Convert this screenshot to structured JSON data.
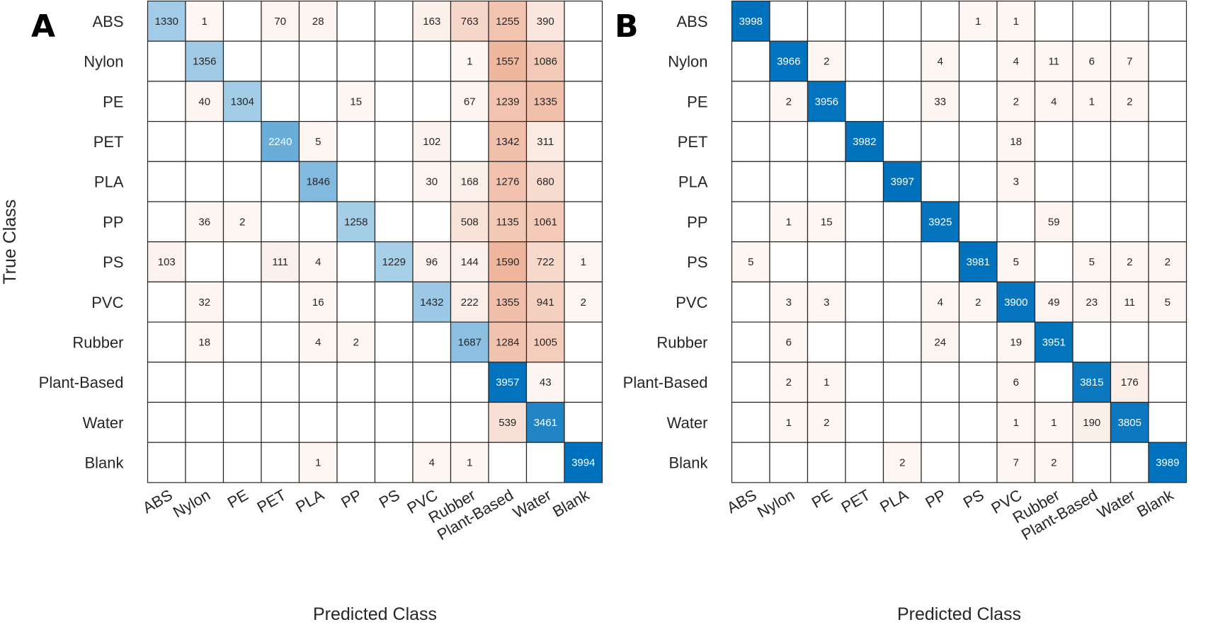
{
  "chart_data": [
    {
      "type": "heatmap",
      "panel_label": "A",
      "xlabel": "Predicted Class",
      "ylabel": "True Class",
      "x_categories": [
        "ABS",
        "Nylon",
        "PE",
        "PET",
        "PLA",
        "PP",
        "PS",
        "PVC",
        "Rubber",
        "Plant-Based",
        "Water",
        "Blank"
      ],
      "y_categories": [
        "ABS",
        "Nylon",
        "PE",
        "PET",
        "PLA",
        "PP",
        "PS",
        "PVC",
        "Rubber",
        "Plant-Based",
        "Water",
        "Blank"
      ],
      "values": [
        [
          1330,
          1,
          null,
          70,
          28,
          null,
          null,
          163,
          763,
          1255,
          390,
          null
        ],
        [
          null,
          1356,
          null,
          null,
          null,
          null,
          null,
          null,
          1,
          1557,
          1086,
          null
        ],
        [
          null,
          40,
          1304,
          null,
          null,
          15,
          null,
          null,
          67,
          1239,
          1335,
          null
        ],
        [
          null,
          null,
          null,
          2240,
          5,
          null,
          null,
          102,
          null,
          1342,
          311,
          null
        ],
        [
          null,
          null,
          null,
          null,
          1846,
          null,
          null,
          30,
          168,
          1276,
          680,
          null
        ],
        [
          null,
          36,
          2,
          null,
          null,
          1258,
          null,
          null,
          508,
          1135,
          1061,
          null
        ],
        [
          103,
          null,
          null,
          111,
          4,
          null,
          1229,
          96,
          144,
          1590,
          722,
          1
        ],
        [
          null,
          32,
          null,
          null,
          16,
          null,
          null,
          1432,
          222,
          1355,
          941,
          2
        ],
        [
          null,
          18,
          null,
          null,
          4,
          2,
          null,
          null,
          1687,
          1284,
          1005,
          null
        ],
        [
          null,
          null,
          null,
          null,
          null,
          null,
          null,
          null,
          null,
          3957,
          43,
          null
        ],
        [
          null,
          null,
          null,
          null,
          null,
          null,
          null,
          null,
          null,
          539,
          3461,
          null
        ],
        [
          null,
          null,
          null,
          null,
          1,
          null,
          null,
          4,
          1,
          null,
          null,
          3994
        ]
      ],
      "colors": {
        "diagonal": "#0072BD",
        "off_diagonal": "#D95319",
        "grid": "#262626"
      }
    },
    {
      "type": "heatmap",
      "panel_label": "B",
      "xlabel": "Predicted Class",
      "ylabel": "",
      "x_categories": [
        "ABS",
        "Nylon",
        "PE",
        "PET",
        "PLA",
        "PP",
        "PS",
        "PVC",
        "Rubber",
        "Plant-Based",
        "Water",
        "Blank"
      ],
      "y_categories": [
        "ABS",
        "Nylon",
        "PE",
        "PET",
        "PLA",
        "PP",
        "PS",
        "PVC",
        "Rubber",
        "Plant-Based",
        "Water",
        "Blank"
      ],
      "values": [
        [
          3998,
          null,
          null,
          null,
          null,
          null,
          1,
          1,
          null,
          null,
          null,
          null
        ],
        [
          null,
          3966,
          2,
          null,
          null,
          4,
          null,
          4,
          11,
          6,
          7,
          null
        ],
        [
          null,
          2,
          3956,
          null,
          null,
          33,
          null,
          2,
          4,
          1,
          2,
          null
        ],
        [
          null,
          null,
          null,
          3982,
          null,
          null,
          null,
          18,
          null,
          null,
          null,
          null
        ],
        [
          null,
          null,
          null,
          null,
          3997,
          null,
          null,
          3,
          null,
          null,
          null,
          null
        ],
        [
          null,
          1,
          15,
          null,
          null,
          3925,
          null,
          null,
          59,
          null,
          null,
          null
        ],
        [
          5,
          null,
          null,
          null,
          null,
          null,
          3981,
          5,
          null,
          5,
          2,
          2
        ],
        [
          null,
          3,
          3,
          null,
          null,
          4,
          2,
          3900,
          49,
          23,
          11,
          5
        ],
        [
          null,
          6,
          null,
          null,
          null,
          24,
          null,
          19,
          3951,
          null,
          null,
          null
        ],
        [
          null,
          2,
          1,
          null,
          null,
          null,
          null,
          6,
          null,
          3815,
          176,
          null
        ],
        [
          null,
          1,
          2,
          null,
          null,
          null,
          null,
          1,
          1,
          190,
          3805,
          null
        ],
        [
          null,
          null,
          null,
          null,
          2,
          null,
          null,
          7,
          2,
          null,
          null,
          3989
        ]
      ],
      "colors": {
        "diagonal": "#0072BD",
        "off_diagonal": "#D95319",
        "grid": "#262626"
      }
    }
  ]
}
